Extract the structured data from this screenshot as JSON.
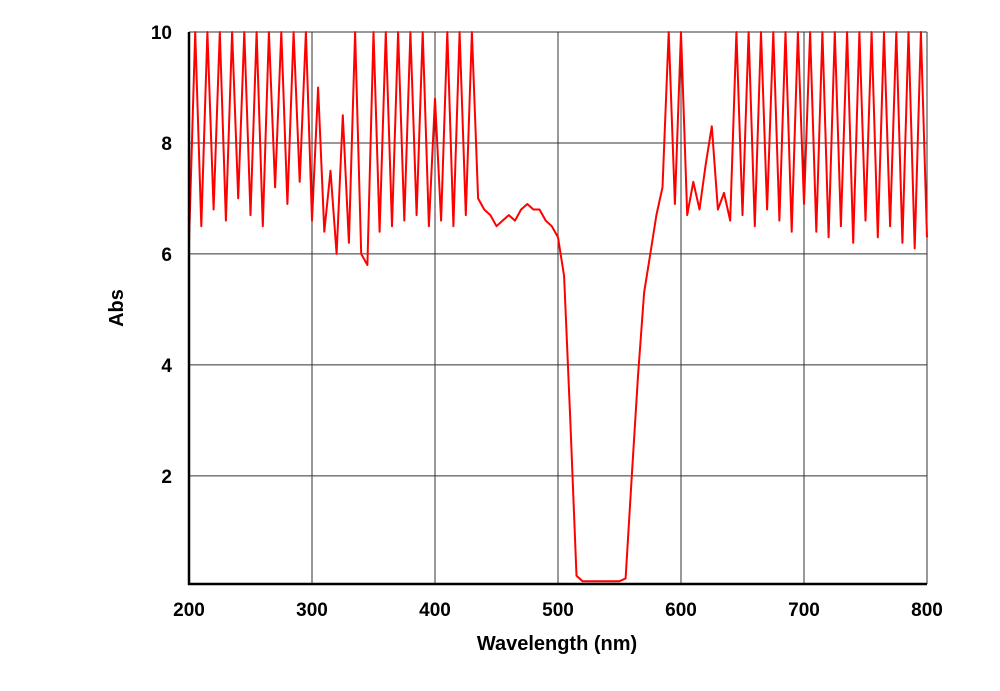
{
  "chart_data": {
    "type": "line",
    "title": "",
    "xlabel": "Wavelength (nm)",
    "ylabel": "Abs",
    "xlim": [
      200,
      800
    ],
    "ylim": [
      0.05,
      10
    ],
    "xticks": [
      "200",
      "300",
      "400",
      "500",
      "600",
      "700",
      "800"
    ],
    "yticks": [
      "2",
      "4",
      "6",
      "8",
      "10"
    ],
    "grid": true,
    "line_color": "#ff0000",
    "series": [
      {
        "x": [
          200,
          205,
          210,
          215,
          220,
          225,
          230,
          235,
          240,
          245,
          250,
          255,
          260,
          265,
          270,
          275,
          280,
          285,
          290,
          295,
          300,
          305,
          310,
          315,
          320,
          325,
          330,
          335,
          340,
          345,
          350,
          355,
          360,
          365,
          370,
          375,
          380,
          385,
          390,
          395,
          400,
          405,
          410,
          415,
          420,
          425,
          430,
          435,
          440,
          445,
          450,
          455,
          460,
          465,
          470,
          475,
          480,
          485,
          490,
          495,
          500,
          505,
          510,
          515,
          520,
          525,
          530,
          535,
          540,
          545,
          550,
          555,
          560,
          565,
          570,
          575,
          580,
          585,
          590,
          595,
          600,
          605,
          610,
          615,
          620,
          625,
          630,
          635,
          640,
          645,
          650,
          655,
          660,
          665,
          670,
          675,
          680,
          685,
          690,
          695,
          700,
          705,
          710,
          715,
          720,
          725,
          730,
          735,
          740,
          745,
          750,
          755,
          760,
          765,
          770,
          775,
          780,
          785,
          790,
          795,
          800
        ],
        "y": [
          6.2,
          10,
          6.5,
          10,
          6.8,
          10,
          6.6,
          10,
          7.0,
          10,
          6.7,
          10,
          6.5,
          10,
          7.2,
          10,
          6.9,
          10,
          7.3,
          10,
          6.6,
          9.0,
          6.4,
          7.5,
          6.0,
          8.5,
          6.2,
          10,
          6.0,
          5.8,
          10,
          6.4,
          10,
          6.5,
          10,
          6.6,
          10,
          6.7,
          10,
          6.5,
          8.8,
          6.6,
          10,
          6.5,
          10,
          6.7,
          10,
          7.0,
          6.8,
          6.7,
          6.5,
          6.6,
          6.7,
          6.6,
          6.8,
          6.9,
          6.8,
          6.8,
          6.6,
          6.5,
          6.3,
          5.6,
          3.0,
          0.2,
          0.1,
          0.1,
          0.1,
          0.1,
          0.1,
          0.1,
          0.1,
          0.15,
          2.0,
          3.8,
          5.3,
          6.0,
          6.7,
          7.2,
          10,
          6.9,
          10,
          6.7,
          7.3,
          6.8,
          7.6,
          8.3,
          6.8,
          7.1,
          6.6,
          10,
          6.7,
          10,
          6.5,
          10,
          6.8,
          10,
          6.6,
          10,
          6.4,
          10,
          6.9,
          10,
          6.4,
          10,
          6.3,
          10,
          6.5,
          10,
          6.2,
          10,
          6.6,
          10,
          6.3,
          10,
          6.5,
          10,
          6.2,
          10,
          6.1,
          10,
          6.3
        ]
      }
    ]
  }
}
